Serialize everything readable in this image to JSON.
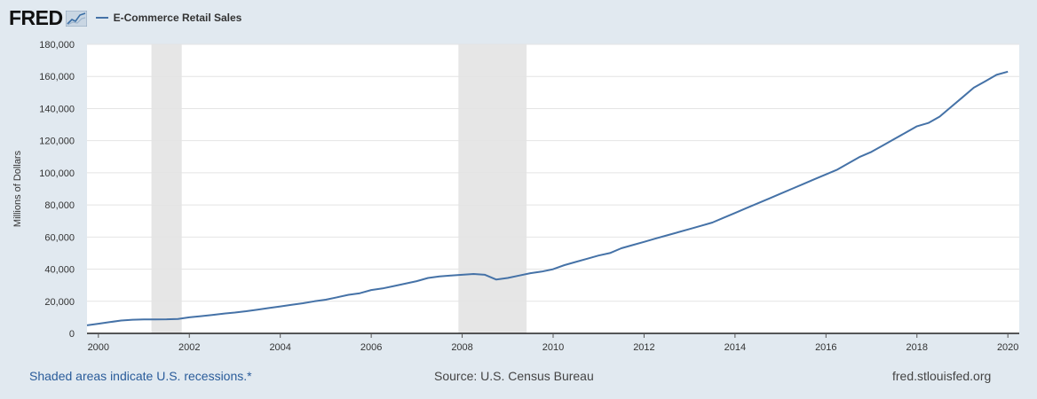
{
  "header": {
    "logo_text": "FRED",
    "legend_label": "E-Commerce Retail Sales"
  },
  "footer": {
    "recession_note": "Shaded areas indicate U.S. recessions.*",
    "source": "Source: U.S. Census Bureau",
    "site": "fred.stlouisfed.org"
  },
  "colors": {
    "series_line": "#4572a7",
    "recession_shade": "#e6e6e6",
    "page_background": "#e1e9f0",
    "plot_background": "#ffffff"
  },
  "chart_data": {
    "type": "line",
    "title": "",
    "xlabel": "",
    "ylabel": "Millions of Dollars",
    "ylim": [
      0,
      180000
    ],
    "xlim": [
      1999.75,
      2020.25
    ],
    "grid": true,
    "legend_position": "top-left",
    "y_ticks": [
      0,
      20000,
      40000,
      60000,
      80000,
      100000,
      120000,
      140000,
      160000,
      180000
    ],
    "y_tick_labels": [
      "0",
      "20,000",
      "40,000",
      "60,000",
      "80,000",
      "100,000",
      "120,000",
      "140,000",
      "160,000",
      "180,000"
    ],
    "x_ticks": [
      2000,
      2002,
      2004,
      2006,
      2008,
      2010,
      2012,
      2014,
      2016,
      2018,
      2020
    ],
    "x_tick_labels": [
      "2000",
      "2002",
      "2004",
      "2006",
      "2008",
      "2010",
      "2012",
      "2014",
      "2016",
      "2018",
      "2020"
    ],
    "recessions": [
      {
        "start": "2001-03",
        "end": "2001-11"
      },
      {
        "start": "2007-12",
        "end": "2009-06"
      }
    ],
    "series": [
      {
        "name": "E-Commerce Retail Sales",
        "x": [
          "1999-10",
          "2000-01",
          "2000-04",
          "2000-07",
          "2000-10",
          "2001-01",
          "2001-04",
          "2001-07",
          "2001-10",
          "2002-01",
          "2002-04",
          "2002-07",
          "2002-10",
          "2003-01",
          "2003-04",
          "2003-07",
          "2003-10",
          "2004-01",
          "2004-04",
          "2004-07",
          "2004-10",
          "2005-01",
          "2005-04",
          "2005-07",
          "2005-10",
          "2006-01",
          "2006-04",
          "2006-07",
          "2006-10",
          "2007-01",
          "2007-04",
          "2007-07",
          "2007-10",
          "2008-01",
          "2008-04",
          "2008-07",
          "2008-10",
          "2009-01",
          "2009-04",
          "2009-07",
          "2009-10",
          "2010-01",
          "2010-04",
          "2010-07",
          "2010-10",
          "2011-01",
          "2011-04",
          "2011-07",
          "2011-10",
          "2012-01",
          "2012-04",
          "2012-07",
          "2012-10",
          "2013-01",
          "2013-04",
          "2013-07",
          "2013-10",
          "2014-01",
          "2014-04",
          "2014-07",
          "2014-10",
          "2015-01",
          "2015-04",
          "2015-07",
          "2015-10",
          "2016-01",
          "2016-04",
          "2016-07",
          "2016-10",
          "2017-01",
          "2017-04",
          "2017-07",
          "2017-10",
          "2018-01",
          "2018-04",
          "2018-07",
          "2018-10",
          "2019-01",
          "2019-04",
          "2019-07",
          "2019-10",
          "2020-01"
        ],
        "values": [
          5000,
          6000,
          7000,
          8000,
          8500,
          8700,
          8700,
          8800,
          9000,
          10000,
          10700,
          11500,
          12300,
          13000,
          13800,
          14800,
          15800,
          16800,
          17800,
          18800,
          20000,
          21000,
          22500,
          24000,
          25000,
          27000,
          28000,
          29500,
          31000,
          32500,
          34500,
          35500,
          36000,
          36500,
          37000,
          36500,
          33500,
          34500,
          36000,
          37500,
          38500,
          40000,
          42500,
          44500,
          46500,
          48500,
          50000,
          53000,
          55000,
          57000,
          59000,
          61000,
          63000,
          65000,
          67000,
          69000,
          72000,
          75000,
          78000,
          81000,
          84000,
          87000,
          90000,
          93000,
          96000,
          99000,
          102000,
          106000,
          110000,
          113000,
          117000,
          121000,
          125000,
          129000,
          131000,
          135000,
          141000,
          147000,
          153000,
          157000,
          161000,
          163000
        ]
      }
    ]
  }
}
